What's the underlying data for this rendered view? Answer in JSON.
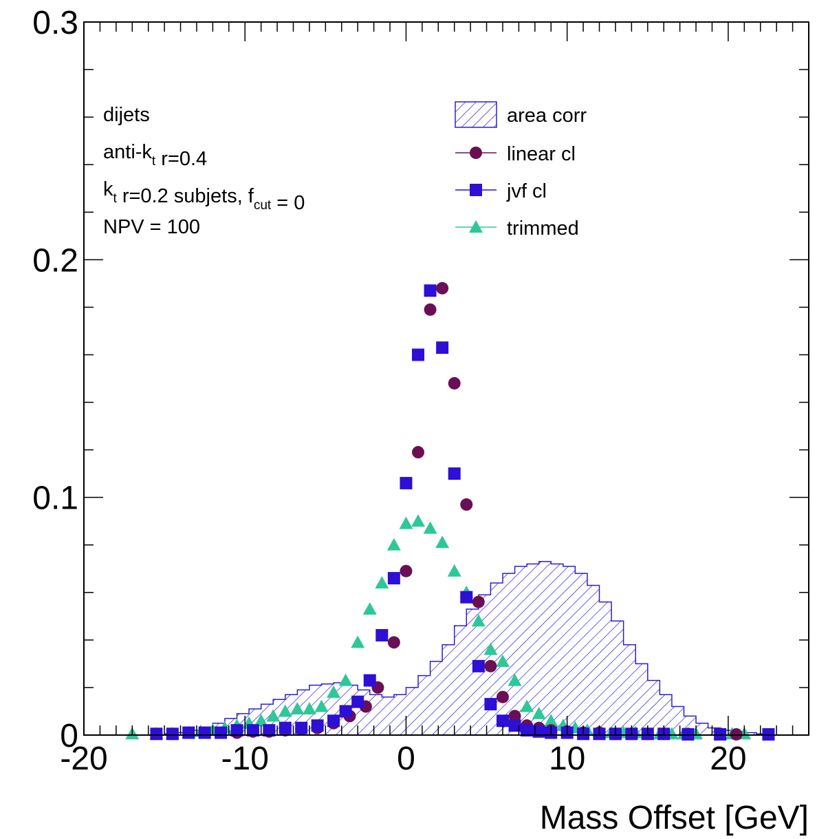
{
  "chart_data": {
    "type": "scatter",
    "xlabel": "Mass Offset [GeV]",
    "ylabel": "",
    "xlim": [
      -20,
      25
    ],
    "ylim": [
      0,
      0.3
    ],
    "x_ticks": [
      "-20",
      "-10",
      "0",
      "10",
      "20"
    ],
    "y_ticks": [
      "0",
      "0.1",
      "0.2",
      "0.3"
    ],
    "grid": false,
    "legend_position": "top-right",
    "colors": {
      "area_corr": "#2a1fd0",
      "linear_cl": "#6b0f55",
      "jvf_cl": "#2e0fd6",
      "trimmed": "#2ec79a"
    },
    "annotations": [
      {
        "segments": [
          {
            "text": "dijets"
          }
        ]
      },
      {
        "segments": [
          {
            "text": "anti-k"
          },
          {
            "text": "t",
            "sub": true
          },
          {
            "text": " r=0.4"
          }
        ]
      },
      {
        "segments": [
          {
            "text": "k"
          },
          {
            "text": "t",
            "sub": true
          },
          {
            "text": " r=0.2 subjets, f"
          },
          {
            "text": "cut",
            "sub": true
          },
          {
            "text": " = 0"
          }
        ]
      },
      {
        "segments": [
          {
            "text": "NPV = 100"
          }
        ]
      }
    ],
    "series": [
      {
        "name": "area corr",
        "style": "hatched-histogram",
        "bin_width": 0.75,
        "bin_edges_start": -15.0,
        "values": [
          0.0005,
          0.001,
          0.002,
          0.003,
          0.005,
          0.007,
          0.009,
          0.011,
          0.013,
          0.015,
          0.017,
          0.019,
          0.021,
          0.0215,
          0.022,
          0.021,
          0.019,
          0.017,
          0.016,
          0.017,
          0.02,
          0.025,
          0.031,
          0.038,
          0.046,
          0.053,
          0.059,
          0.064,
          0.068,
          0.071,
          0.072,
          0.073,
          0.072,
          0.071,
          0.068,
          0.063,
          0.056,
          0.048,
          0.038,
          0.03,
          0.023,
          0.017,
          0.012,
          0.008,
          0.005,
          0.003,
          0.002,
          0.0015,
          0.001,
          0.0005
        ]
      },
      {
        "name": "linear cl",
        "style": "circle",
        "x": [
          -15.5,
          -14.5,
          -13.5,
          -12.5,
          -11.5,
          -10.5,
          -9.5,
          -8.5,
          -7.5,
          -6.5,
          -5.5,
          -4.5,
          -3.5,
          -2.5,
          -1.75,
          -0.75,
          0.0,
          0.75,
          1.5,
          2.25,
          3.0,
          3.75,
          4.5,
          5.25,
          6.0,
          6.75,
          7.5,
          8.25,
          9.0,
          10.0,
          11.0,
          12.0,
          13.0,
          14.0,
          15.0,
          16.0,
          17.5,
          19.5,
          20.5,
          22.5
        ],
        "y": [
          0.0005,
          0.0005,
          0.001,
          0.001,
          0.001,
          0.001,
          0.0015,
          0.0015,
          0.002,
          0.0025,
          0.003,
          0.005,
          0.008,
          0.012,
          0.02,
          0.039,
          0.069,
          0.119,
          0.179,
          0.188,
          0.148,
          0.097,
          0.056,
          0.029,
          0.016,
          0.008,
          0.004,
          0.003,
          0.002,
          0.0015,
          0.001,
          0.001,
          0.0005,
          0.0005,
          0.0005,
          0.0005,
          0.0005,
          0.0005,
          0.0003,
          0.0003
        ]
      },
      {
        "name": "jvf cl",
        "style": "square",
        "x": [
          -15.5,
          -14.5,
          -13.5,
          -12.5,
          -11.5,
          -10.5,
          -9.5,
          -8.5,
          -7.5,
          -6.5,
          -5.5,
          -4.5,
          -3.75,
          -3.0,
          -2.25,
          -1.5,
          -0.75,
          0.0,
          0.75,
          1.5,
          2.25,
          3.0,
          3.75,
          4.5,
          5.25,
          6.0,
          6.75,
          7.5,
          8.25,
          9.0,
          10.0,
          11.0,
          12.0,
          13.0,
          14.0,
          15.0,
          16.0,
          17.5,
          19.5,
          22.5
        ],
        "y": [
          0.0005,
          0.0005,
          0.001,
          0.001,
          0.001,
          0.002,
          0.002,
          0.002,
          0.003,
          0.003,
          0.004,
          0.006,
          0.01,
          0.014,
          0.023,
          0.042,
          0.066,
          0.106,
          0.16,
          0.187,
          0.163,
          0.11,
          0.058,
          0.029,
          0.013,
          0.006,
          0.004,
          0.002,
          0.0015,
          0.001,
          0.001,
          0.0005,
          0.0005,
          0.0005,
          0.0005,
          0.0005,
          0.0005,
          0.0003,
          0.0003,
          0.0003
        ]
      },
      {
        "name": "trimmed",
        "style": "triangle",
        "x": [
          -17.0,
          -15.5,
          -14.5,
          -13.5,
          -12.75,
          -12.0,
          -11.25,
          -10.5,
          -9.75,
          -9.0,
          -8.25,
          -7.5,
          -6.75,
          -6.0,
          -5.25,
          -4.5,
          -3.75,
          -3.0,
          -2.25,
          -1.5,
          -0.75,
          0.0,
          0.75,
          1.5,
          2.25,
          3.0,
          3.75,
          4.5,
          5.25,
          6.0,
          6.75,
          7.5,
          8.25,
          9.0,
          9.75,
          10.5,
          11.25,
          12.0,
          12.75,
          13.5,
          14.25,
          15.0,
          15.75,
          16.5,
          17.25,
          18.0,
          19.5,
          20.25,
          21.0
        ],
        "y": [
          0.0005,
          0.0005,
          0.0005,
          0.001,
          0.0015,
          0.002,
          0.003,
          0.004,
          0.005,
          0.006,
          0.008,
          0.01,
          0.011,
          0.011,
          0.012,
          0.018,
          0.023,
          0.039,
          0.053,
          0.064,
          0.08,
          0.089,
          0.09,
          0.087,
          0.081,
          0.069,
          0.06,
          0.048,
          0.036,
          0.031,
          0.023,
          0.012,
          0.009,
          0.006,
          0.004,
          0.003,
          0.002,
          0.0015,
          0.001,
          0.001,
          0.001,
          0.0005,
          0.0005,
          0.0005,
          0.0005,
          0.0005,
          0.0005,
          0.0005,
          0.0005
        ]
      }
    ]
  }
}
